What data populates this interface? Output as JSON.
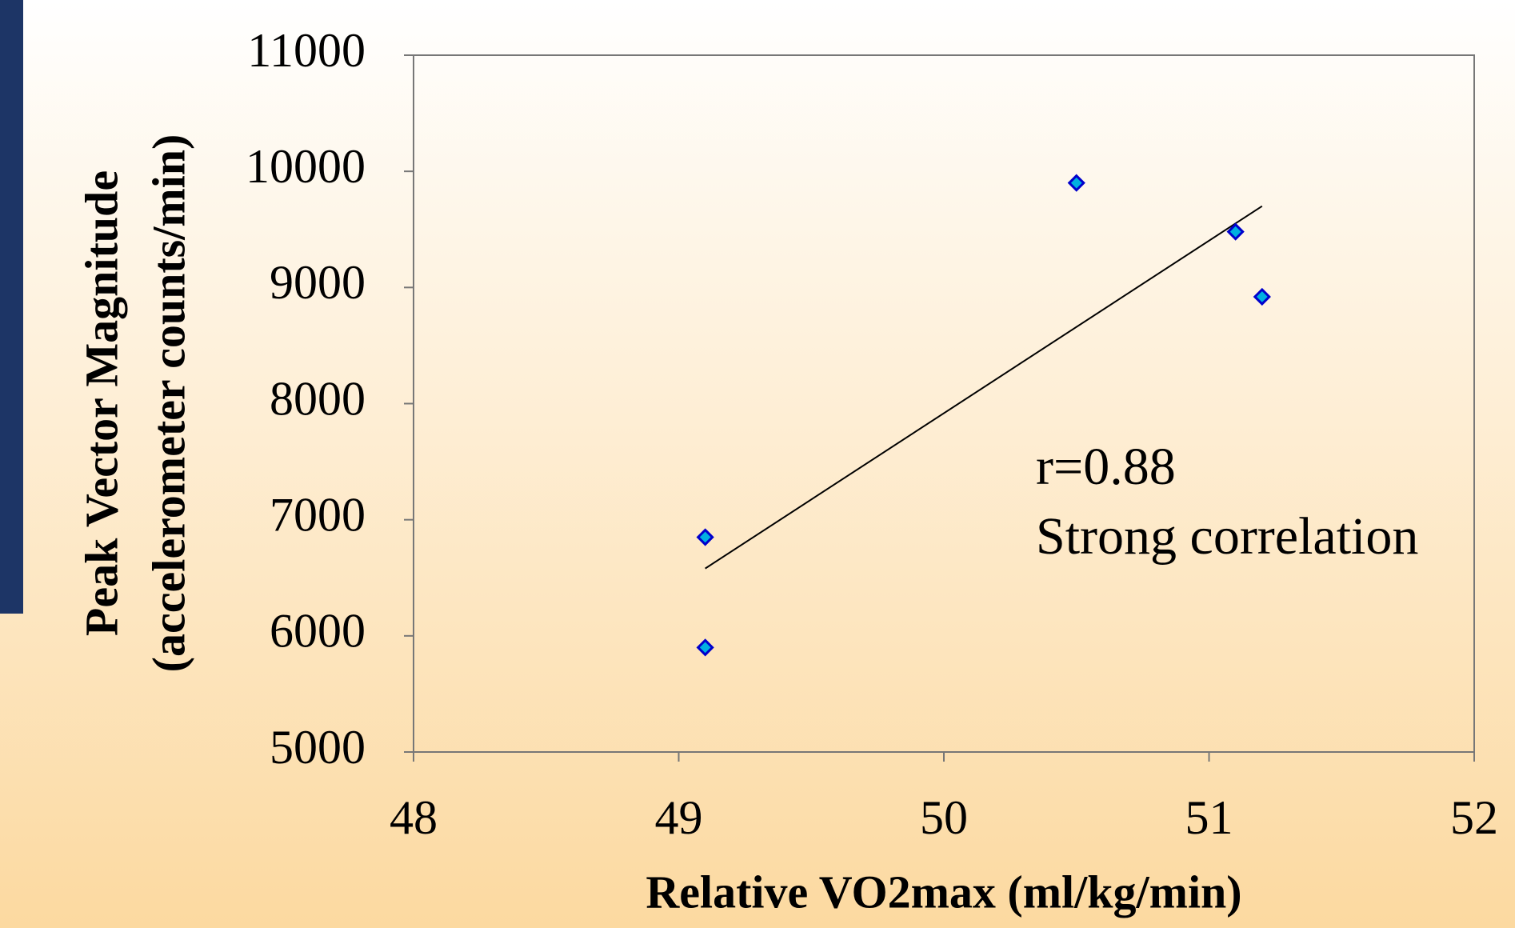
{
  "chart_data": {
    "type": "scatter",
    "x_label": "Relative VO2max (ml/kg/min)",
    "y_label": [
      "Peak Vector Magnitude",
      "(accelerometer counts/min)"
    ],
    "series": [
      {
        "color": "#0000cc",
        "x": [
          49.1,
          49.1,
          50.5,
          51.1,
          51.2
        ],
        "values": [
          6850,
          5900,
          9900,
          9480,
          8920
        ]
      }
    ],
    "trendline": {
      "x": [
        49.1,
        51.2
      ],
      "values": [
        6580,
        9700
      ]
    },
    "annotations": [
      "r=0.88",
      "Strong correlation"
    ],
    "xlim": [
      48,
      52
    ],
    "xticks": [
      48,
      49,
      50,
      51,
      52
    ],
    "ylim": [
      5000,
      11000
    ],
    "yticks": [
      5000,
      6000,
      7000,
      8000,
      9000,
      10000,
      11000
    ]
  }
}
